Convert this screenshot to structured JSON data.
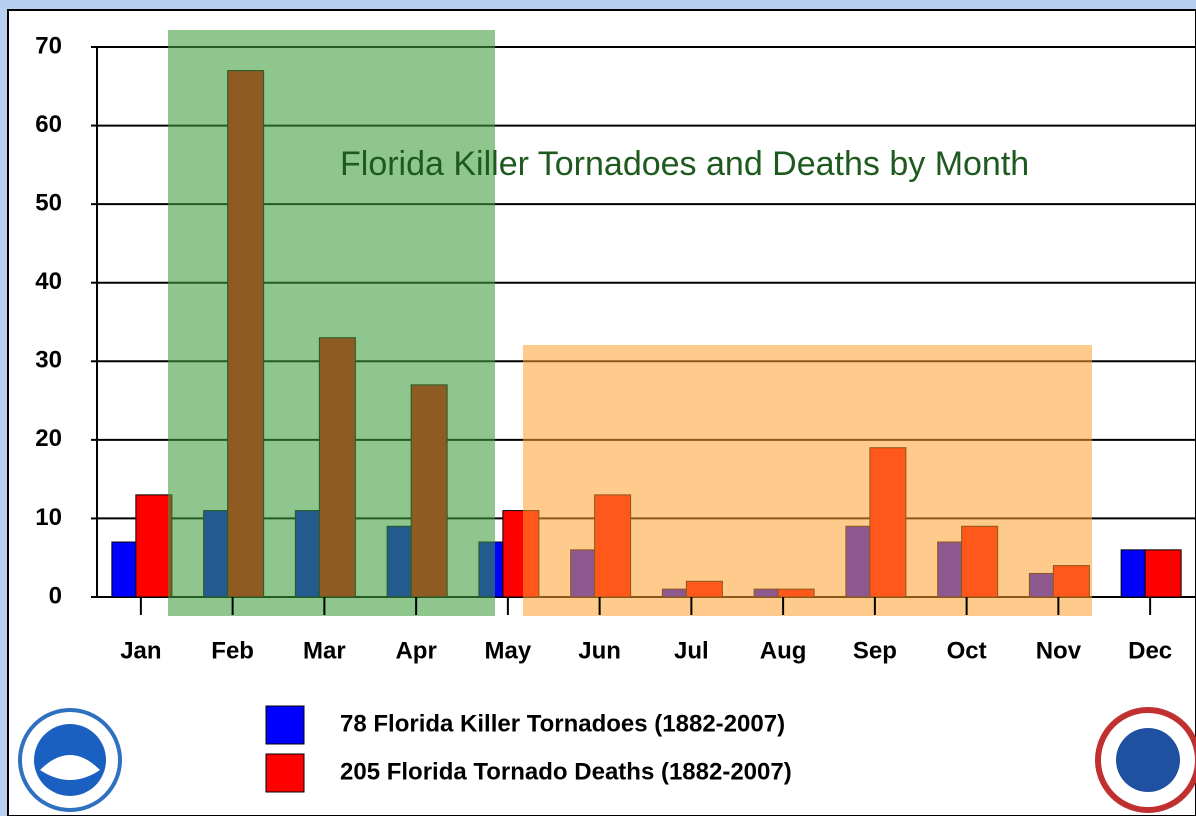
{
  "chart_data": {
    "type": "bar",
    "title": "Florida Killer Tornadoes and Deaths by Month",
    "categories": [
      "Jan",
      "Feb",
      "Mar",
      "Apr",
      "May",
      "Jun",
      "Jul",
      "Aug",
      "Sep",
      "Oct",
      "Nov",
      "Dec"
    ],
    "series": [
      {
        "name": "78 Florida Killer Tornadoes (1882-2007)",
        "color": "#0000ff",
        "values": [
          7,
          11,
          11,
          9,
          7,
          6,
          1,
          1,
          9,
          7,
          3,
          6
        ]
      },
      {
        "name": "205 Florida Tornado Deaths (1882-2007)",
        "color": "#ff0000",
        "values": [
          13,
          67,
          33,
          27,
          11,
          13,
          2,
          1,
          19,
          9,
          4,
          6
        ]
      }
    ],
    "ylim": [
      0,
      70
    ],
    "yticks": [
      0,
      10,
      20,
      30,
      40,
      50,
      60,
      70
    ],
    "grid": true
  }
}
